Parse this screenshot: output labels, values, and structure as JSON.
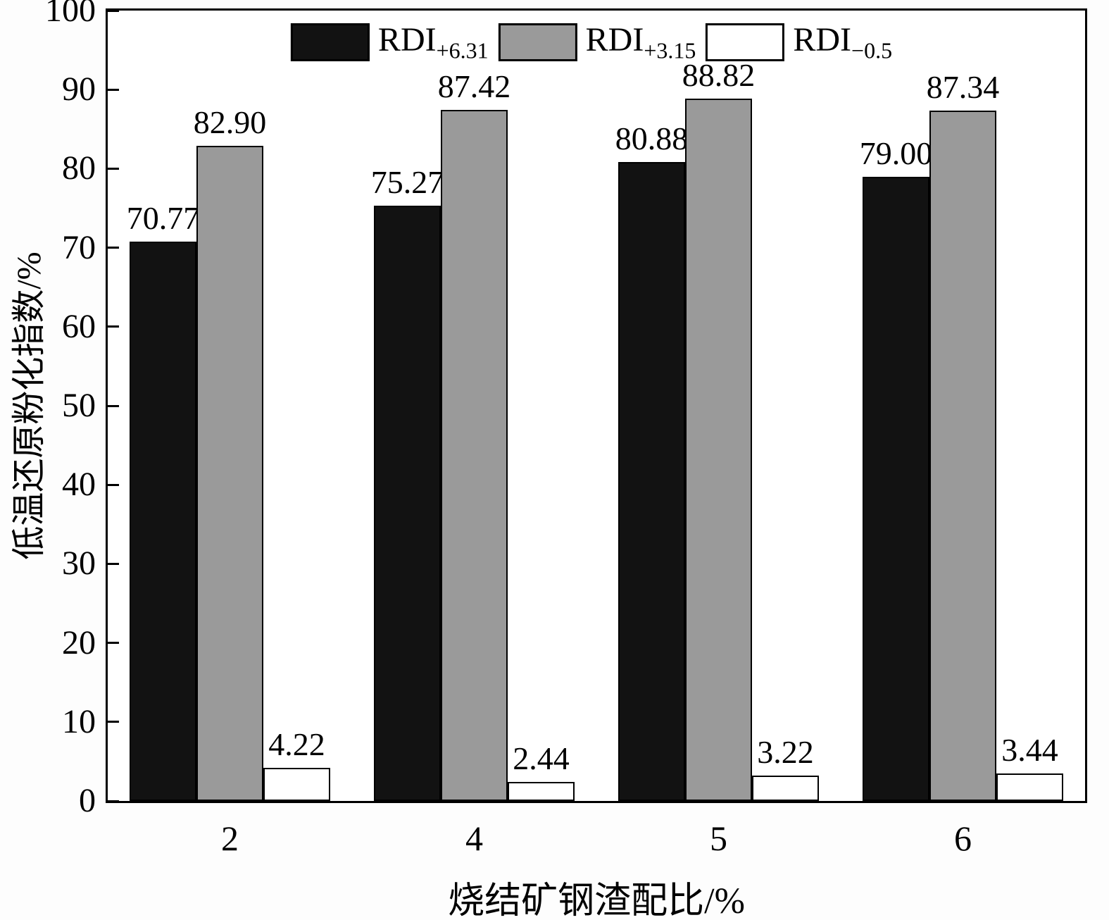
{
  "chart_data": {
    "type": "bar",
    "title": "",
    "xlabel": "烧结矿钢渣配比/%",
    "ylabel": "低温还原粉化指数/%",
    "ylim": [
      0,
      100
    ],
    "yticks": [
      0,
      10,
      20,
      30,
      40,
      50,
      60,
      70,
      80,
      90,
      100
    ],
    "categories": [
      "2",
      "4",
      "5",
      "6"
    ],
    "grid": false,
    "legend_position": "top-inside",
    "axis_color": "#000000",
    "series": [
      {
        "name": "RDI+6.31",
        "label_main": "RDI",
        "label_sub": "+6.31",
        "color": "#121212",
        "values": [
          70.77,
          75.27,
          80.88,
          79.0
        ],
        "value_labels": [
          "70.77",
          "75.27",
          "80.88",
          "79.00"
        ]
      },
      {
        "name": "RDI+3.15",
        "label_main": "RDI",
        "label_sub": "+3.15",
        "color": "#9a9a9a",
        "values": [
          82.9,
          87.42,
          88.82,
          87.34
        ],
        "value_labels": [
          "82.90",
          "87.42",
          "88.82",
          "87.34"
        ]
      },
      {
        "name": "RDI-0.5",
        "label_main": "RDI",
        "label_sub": "−0.5",
        "color": "#ffffff",
        "values": [
          4.22,
          2.44,
          3.22,
          3.44
        ],
        "value_labels": [
          "4.22",
          "2.44",
          "3.22",
          "3.44"
        ]
      }
    ]
  }
}
